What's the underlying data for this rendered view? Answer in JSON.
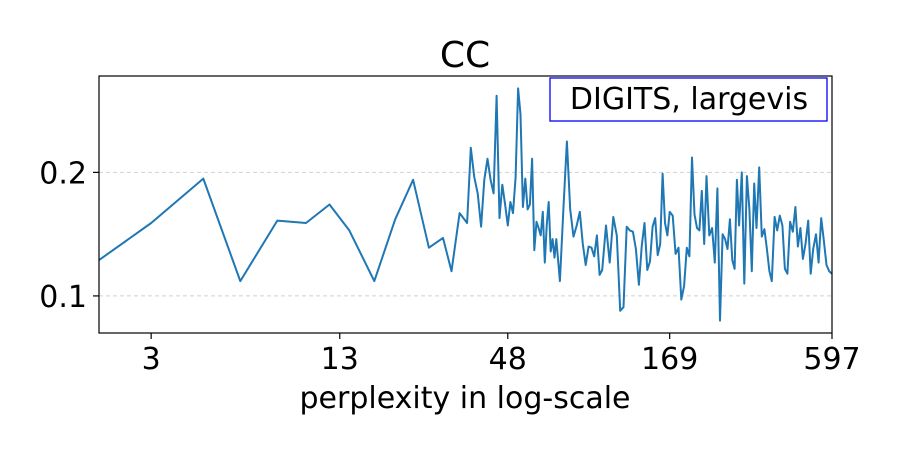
{
  "chart_data": {
    "type": "line",
    "title": "CC",
    "xlabel": "perplexity in log-scale",
    "ylabel": "",
    "x_scale": "log",
    "xlim": [
      2,
      597
    ],
    "ylim": [
      0.07,
      0.278
    ],
    "x_ticks": [
      3,
      13,
      48,
      169,
      597
    ],
    "x_tick_labels": [
      "3",
      "13",
      "48",
      "169",
      "597"
    ],
    "y_ticks": [
      0.1,
      0.2
    ],
    "y_tick_labels": [
      "0.1",
      "0.2"
    ],
    "grid": "horizontal dashed",
    "legend_box_text": "DIGITS, largevis",
    "legend_position": "top-right",
    "line_color": "#1f77b4",
    "series": [
      {
        "name": "CC",
        "x": [
          2,
          3,
          4.5,
          6,
          8,
          10,
          12,
          14,
          17,
          20,
          23,
          26,
          29,
          31,
          33,
          35,
          36,
          37,
          38,
          39,
          40,
          41,
          42,
          43,
          44,
          45,
          46,
          47,
          48,
          49,
          50,
          51,
          52,
          53,
          54,
          55,
          56,
          57,
          58,
          59,
          60,
          61,
          62,
          63,
          64,
          65,
          66,
          67,
          68,
          69,
          70,
          72,
          74,
          76,
          78,
          80,
          82,
          84,
          86,
          88,
          90,
          92,
          94,
          96,
          98,
          100,
          103,
          106,
          109,
          112,
          115,
          118,
          121,
          124,
          127,
          130,
          133,
          136,
          139,
          142,
          145,
          148,
          151,
          154,
          157,
          160,
          163,
          166,
          169,
          173,
          177,
          181,
          185,
          189,
          193,
          197,
          201,
          205,
          209,
          213,
          217,
          221,
          225,
          230,
          235,
          240,
          245,
          250,
          255,
          260,
          265,
          270,
          275,
          280,
          285,
          290,
          296,
          302,
          308,
          314,
          320,
          326,
          332,
          339,
          346,
          353,
          360,
          367,
          374,
          382,
          390,
          398,
          406,
          414,
          422,
          431,
          440,
          449,
          458,
          467,
          476,
          486,
          496,
          506,
          516,
          527,
          538,
          549,
          560,
          572,
          584,
          597
        ],
        "values": [
          0.129,
          0.159,
          0.195,
          0.112,
          0.161,
          0.159,
          0.174,
          0.153,
          0.112,
          0.162,
          0.194,
          0.139,
          0.147,
          0.12,
          0.167,
          0.159,
          0.22,
          0.196,
          0.183,
          0.156,
          0.194,
          0.211,
          0.194,
          0.183,
          0.262,
          0.163,
          0.19,
          0.174,
          0.157,
          0.176,
          0.167,
          0.196,
          0.268,
          0.247,
          0.172,
          0.195,
          0.17,
          0.174,
          0.211,
          0.137,
          0.16,
          0.155,
          0.149,
          0.168,
          0.127,
          0.158,
          0.176,
          0.136,
          0.146,
          0.131,
          0.146,
          0.112,
          0.172,
          0.225,
          0.17,
          0.148,
          0.157,
          0.168,
          0.142,
          0.125,
          0.14,
          0.139,
          0.132,
          0.149,
          0.117,
          0.121,
          0.157,
          0.127,
          0.164,
          0.149,
          0.088,
          0.091,
          0.156,
          0.153,
          0.152,
          0.138,
          0.109,
          0.14,
          0.159,
          0.121,
          0.128,
          0.156,
          0.163,
          0.133,
          0.142,
          0.199,
          0.159,
          0.149,
          0.168,
          0.165,
          0.134,
          0.139,
          0.097,
          0.108,
          0.139,
          0.132,
          0.212,
          0.166,
          0.155,
          0.153,
          0.185,
          0.142,
          0.197,
          0.149,
          0.155,
          0.127,
          0.187,
          0.08,
          0.15,
          0.146,
          0.138,
          0.162,
          0.129,
          0.122,
          0.194,
          0.157,
          0.2,
          0.11,
          0.197,
          0.17,
          0.12,
          0.191,
          0.155,
          0.204,
          0.148,
          0.154,
          0.138,
          0.12,
          0.112,
          0.164,
          0.153,
          0.165,
          0.157,
          0.122,
          0.118,
          0.16,
          0.152,
          0.172,
          0.14,
          0.155,
          0.13,
          0.142,
          0.161,
          0.118,
          0.138,
          0.15,
          0.127,
          0.163,
          0.145,
          0.125,
          0.12,
          0.118
        ]
      }
    ]
  }
}
